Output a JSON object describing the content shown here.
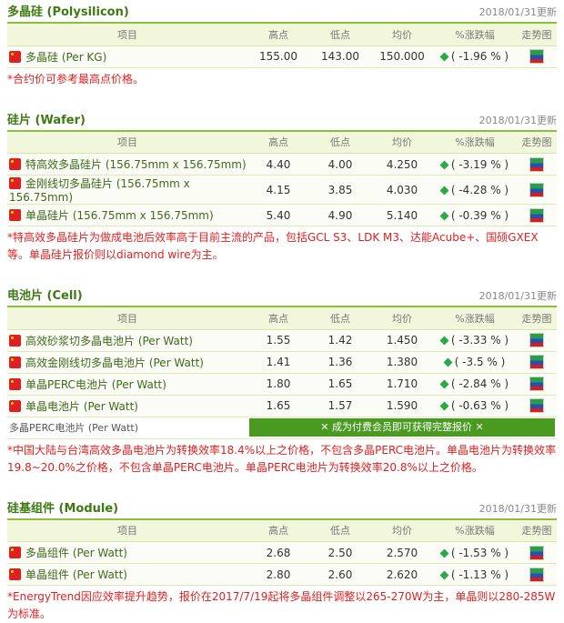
{
  "columns": {
    "item": "项目",
    "high": "高点",
    "low": "低点",
    "avg": "均价",
    "change": "%涨跌幅",
    "chart": "走势图"
  },
  "colors": {
    "accent": "#3d7a12",
    "border": "#8cbf3f",
    "down": "#2aa84a",
    "note": "#e02020",
    "lock_button": "#4a9a22"
  },
  "sections": [
    {
      "title": "多晶硅 (Polysilicon)",
      "date": "2018/01/31更新",
      "rows": [
        {
          "name": "多晶硅 (Per KG)",
          "high": "155.00",
          "low": "143.00",
          "avg": "150.000",
          "change": "( -1.96 % )"
        }
      ],
      "note": "*合约价可参考最高点价格。"
    },
    {
      "title": "硅片 (Wafer)",
      "date": "2018/01/31更新",
      "rows": [
        {
          "name": "特高效多晶硅片 (156.75mm x 156.75mm)",
          "high": "4.40",
          "low": "4.00",
          "avg": "4.250",
          "change": "( -3.19 % )"
        },
        {
          "name": "金刚线切多晶硅片 (156.75mm x 156.75mm)",
          "high": "4.15",
          "low": "3.85",
          "avg": "4.030",
          "change": "( -4.28 % )"
        },
        {
          "name": "单晶硅片 (156.75mm x 156.75mm)",
          "high": "5.40",
          "low": "4.90",
          "avg": "5.140",
          "change": "( -0.39 % )"
        }
      ],
      "note": "*特高效多晶硅片为做成电池后效率高于目前主流的产品，包括GCL S3、LDK M3、达能Acube+、国硕GXEX等。单晶硅片报价则以diamond wire为主。"
    },
    {
      "title": "电池片 (Cell)",
      "date": "2018/01/31更新",
      "rows": [
        {
          "name": "高效砂浆切多晶电池片 (Per Watt)",
          "high": "1.55",
          "low": "1.42",
          "avg": "1.450",
          "change": "( -3.33 % )"
        },
        {
          "name": "高效金刚线切多晶电池片 (Per Watt)",
          "high": "1.41",
          "low": "1.36",
          "avg": "1.380",
          "change": "( -3.5 % )"
        },
        {
          "name": "单晶PERC电池片 (Per Watt)",
          "high": "1.80",
          "low": "1.65",
          "avg": "1.710",
          "change": "( -2.84 % )"
        },
        {
          "name": "单晶电池片 (Per Watt)",
          "high": "1.65",
          "low": "1.57",
          "avg": "1.590",
          "change": "( -0.63 % )"
        }
      ],
      "locked": {
        "name": "多晶PERC电池片 (Per Watt)",
        "button": "✕ 成为付费会员即可获得完整报价 ✕"
      },
      "note": "*中国大陆与台湾高效多晶电池片为转换效率18.4%以上之价格，不包含多晶PERC电池片。单晶电池片为转换效率19.8~20.0%之价格，不包含单晶PERC电池片。单晶PERC电池片为转换效率20.8%以上之价格。"
    },
    {
      "title": "硅基组件 (Module)",
      "date": "2018/01/31更新",
      "rows": [
        {
          "name": "多晶组件 (Per Watt)",
          "high": "2.68",
          "low": "2.50",
          "avg": "2.570",
          "change": "( -1.53 % )"
        },
        {
          "name": "单晶组件 (Per Watt)",
          "high": "2.80",
          "low": "2.60",
          "avg": "2.620",
          "change": "( -1.13 % )"
        }
      ],
      "note": "*EnergyTrend因应效率提升趋势，报价在2017/7/19起将多晶组件调整以265-270W为主，单晶则以280-285W为标准。"
    }
  ]
}
